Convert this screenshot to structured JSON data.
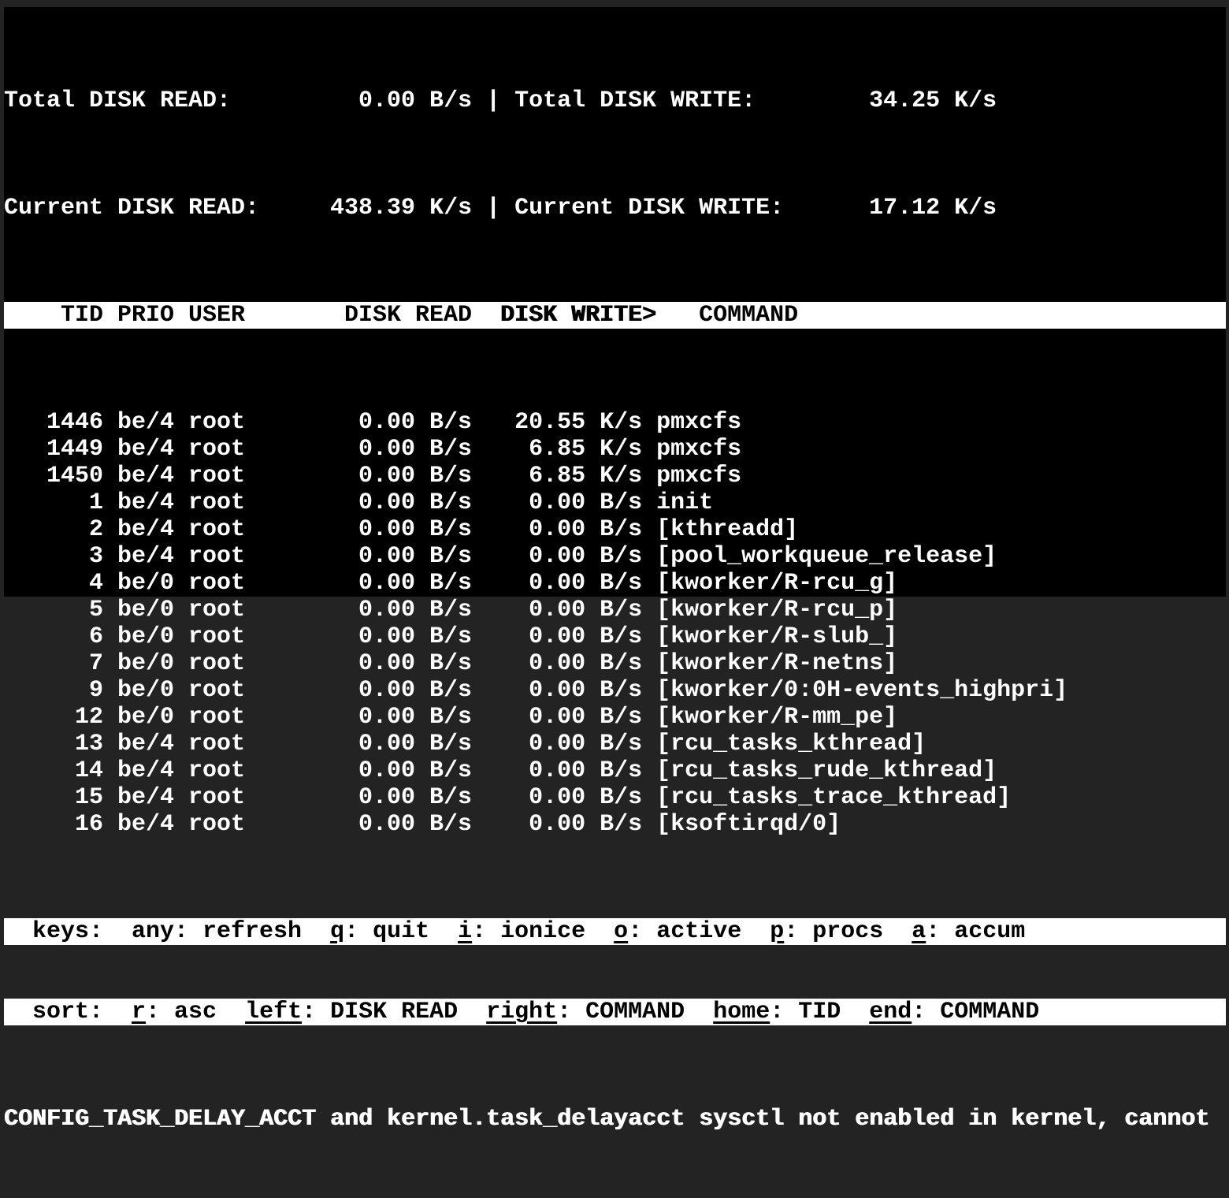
{
  "app_title": "iotop",
  "summary": {
    "separator": "|",
    "line1": {
      "left_label": "Total DISK READ:",
      "left_value": "0.00 B/s",
      "right_label": "Total DISK WRITE:",
      "right_value": "34.25 K/s"
    },
    "line2": {
      "left_label": "Current DISK READ:",
      "left_value": "438.39 K/s",
      "right_label": "Current DISK WRITE:",
      "right_value": "17.12 K/s"
    }
  },
  "table": {
    "columns": [
      {
        "label": "TID"
      },
      {
        "label": "PRIO"
      },
      {
        "label": "USER"
      },
      {
        "label": "DISK READ"
      },
      {
        "label": "DISK WRITE>",
        "sort": true
      },
      {
        "label": "COMMAND"
      }
    ],
    "sort_column": "DISK WRITE",
    "sort_indicator": ">",
    "rows": [
      {
        "tid": "1446",
        "prio": "be/4",
        "user": "root",
        "disk_read": "0.00 B/s",
        "disk_write": "20.55 K/s",
        "command": "pmxcfs"
      },
      {
        "tid": "1449",
        "prio": "be/4",
        "user": "root",
        "disk_read": "0.00 B/s",
        "disk_write": "6.85 K/s",
        "command": "pmxcfs"
      },
      {
        "tid": "1450",
        "prio": "be/4",
        "user": "root",
        "disk_read": "0.00 B/s",
        "disk_write": "6.85 K/s",
        "command": "pmxcfs"
      },
      {
        "tid": "1",
        "prio": "be/4",
        "user": "root",
        "disk_read": "0.00 B/s",
        "disk_write": "0.00 B/s",
        "command": "init"
      },
      {
        "tid": "2",
        "prio": "be/4",
        "user": "root",
        "disk_read": "0.00 B/s",
        "disk_write": "0.00 B/s",
        "command": "[kthreadd]"
      },
      {
        "tid": "3",
        "prio": "be/4",
        "user": "root",
        "disk_read": "0.00 B/s",
        "disk_write": "0.00 B/s",
        "command": "[pool_workqueue_release]"
      },
      {
        "tid": "4",
        "prio": "be/0",
        "user": "root",
        "disk_read": "0.00 B/s",
        "disk_write": "0.00 B/s",
        "command": "[kworker/R-rcu_g]"
      },
      {
        "tid": "5",
        "prio": "be/0",
        "user": "root",
        "disk_read": "0.00 B/s",
        "disk_write": "0.00 B/s",
        "command": "[kworker/R-rcu_p]"
      },
      {
        "tid": "6",
        "prio": "be/0",
        "user": "root",
        "disk_read": "0.00 B/s",
        "disk_write": "0.00 B/s",
        "command": "[kworker/R-slub_]"
      },
      {
        "tid": "7",
        "prio": "be/0",
        "user": "root",
        "disk_read": "0.00 B/s",
        "disk_write": "0.00 B/s",
        "command": "[kworker/R-netns]"
      },
      {
        "tid": "9",
        "prio": "be/0",
        "user": "root",
        "disk_read": "0.00 B/s",
        "disk_write": "0.00 B/s",
        "command": "[kworker/0:0H-events_highpri]"
      },
      {
        "tid": "12",
        "prio": "be/0",
        "user": "root",
        "disk_read": "0.00 B/s",
        "disk_write": "0.00 B/s",
        "command": "[kworker/R-mm_pe]"
      },
      {
        "tid": "13",
        "prio": "be/4",
        "user": "root",
        "disk_read": "0.00 B/s",
        "disk_write": "0.00 B/s",
        "command": "[rcu_tasks_kthread]"
      },
      {
        "tid": "14",
        "prio": "be/4",
        "user": "root",
        "disk_read": "0.00 B/s",
        "disk_write": "0.00 B/s",
        "command": "[rcu_tasks_rude_kthread]"
      },
      {
        "tid": "15",
        "prio": "be/4",
        "user": "root",
        "disk_read": "0.00 B/s",
        "disk_write": "0.00 B/s",
        "command": "[rcu_tasks_trace_kthread]"
      },
      {
        "tid": "16",
        "prio": "be/4",
        "user": "root",
        "disk_read": "0.00 B/s",
        "disk_write": "0.00 B/s",
        "command": "[ksoftirqd/0]"
      }
    ]
  },
  "footer": {
    "keys_line": [
      {
        "t": "  keys:  any: refresh  "
      },
      {
        "t": "q",
        "u": true
      },
      {
        "t": ": quit  "
      },
      {
        "t": "i",
        "u": true
      },
      {
        "t": ": ionice  "
      },
      {
        "t": "o",
        "u": true
      },
      {
        "t": ": active  "
      },
      {
        "t": "p",
        "u": true
      },
      {
        "t": ": procs  "
      },
      {
        "t": "a",
        "u": true
      },
      {
        "t": ": accum"
      }
    ],
    "sort_line": [
      {
        "t": "  sort:  "
      },
      {
        "t": "r",
        "u": true
      },
      {
        "t": ": asc  "
      },
      {
        "t": "left",
        "u": true
      },
      {
        "t": ": DISK READ  "
      },
      {
        "t": "right",
        "u": true
      },
      {
        "t": ": COMMAND  "
      },
      {
        "t": "home",
        "u": true
      },
      {
        "t": ": TID  "
      },
      {
        "t": "end",
        "u": true
      },
      {
        "t": ": COMMAND"
      }
    ],
    "status_message": "CONFIG_TASK_DELAY_ACCT and kernel.task_delayacct sysctl not enabled in kernel, cannot"
  },
  "colors": {
    "background": "#000000",
    "text": "#ffffff",
    "reverse_band_bg": "#ffffff",
    "reverse_band_text": "#000000",
    "window_frame": "#232323"
  }
}
